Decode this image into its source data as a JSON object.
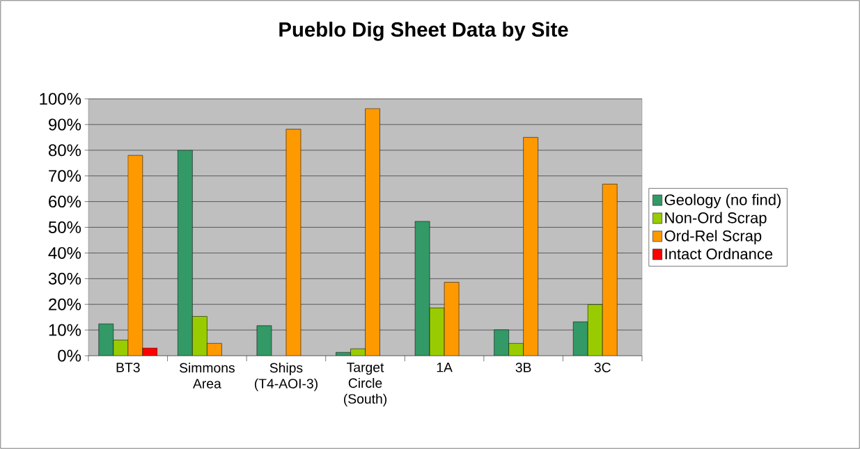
{
  "chart_data": {
    "type": "bar",
    "title": "Pueblo Dig Sheet Data by Site",
    "categories": [
      "BT3",
      "Simmons Area",
      "Ships (T4-AOI-3)",
      "Target Circle (South)",
      "1A",
      "3B",
      "3C"
    ],
    "series": [
      {
        "name": "Geology (no find)",
        "color": "#339966",
        "values": [
          12.4,
          80.0,
          11.7,
          1.3,
          52.3,
          10.1,
          13.2
        ]
      },
      {
        "name": "Non-Ord Scrap",
        "color": "#99cc00",
        "values": [
          6.1,
          15.3,
          null,
          2.7,
          18.6,
          4.8,
          19.9
        ]
      },
      {
        "name": "Ord-Rel Scrap",
        "color": "#ff9900",
        "values": [
          78.0,
          4.8,
          88.2,
          96.2,
          28.6,
          85.0,
          66.8
        ]
      },
      {
        "name": "Intact Ordnance",
        "color": "#ff0000",
        "values": [
          3.0,
          null,
          null,
          null,
          null,
          null,
          null
        ]
      }
    ],
    "ylim": [
      0,
      100
    ],
    "yticks": [
      {
        "value": 0,
        "label": "0%"
      },
      {
        "value": 10,
        "label": "10%"
      },
      {
        "value": 20,
        "label": "20%"
      },
      {
        "value": 30,
        "label": "30%"
      },
      {
        "value": 40,
        "label": "40%"
      },
      {
        "value": 50,
        "label": "50%"
      },
      {
        "value": 60,
        "label": "60%"
      },
      {
        "value": 70,
        "label": "70%"
      },
      {
        "value": 80,
        "label": "80%"
      },
      {
        "value": 90,
        "label": "90%"
      },
      {
        "value": 100,
        "label": "100%"
      }
    ],
    "grid": "y",
    "legend": "right"
  }
}
